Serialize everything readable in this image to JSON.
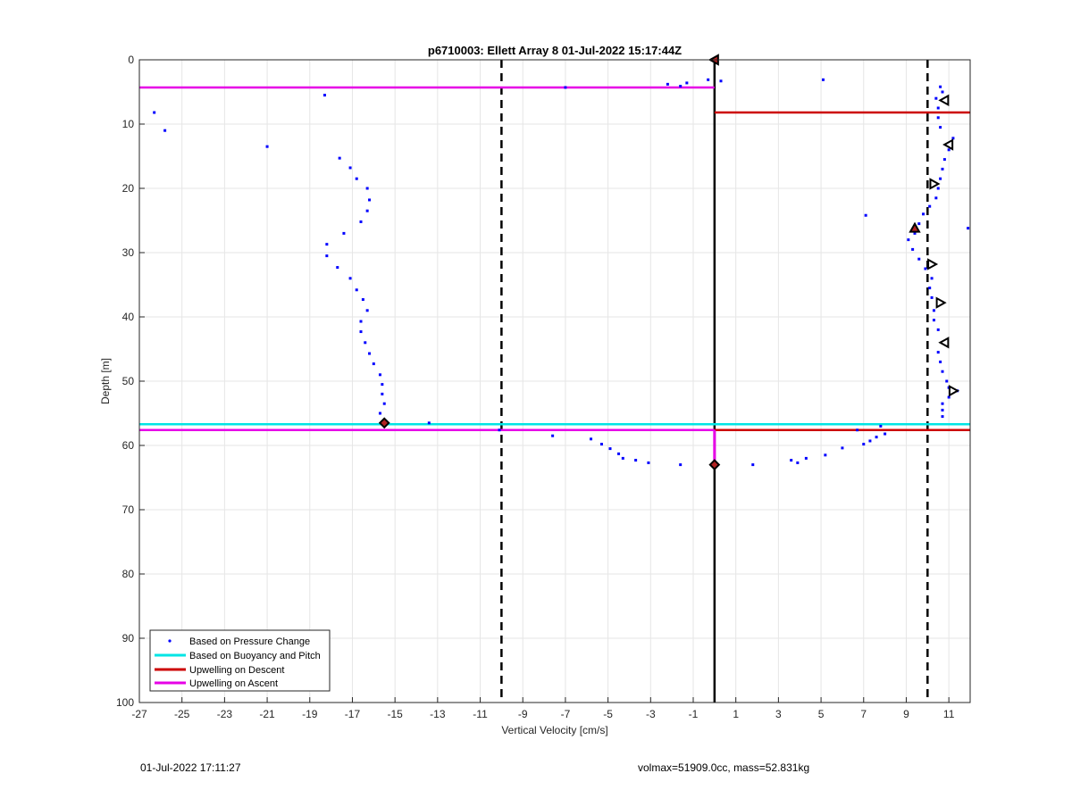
{
  "chart_data": {
    "type": "scatter",
    "title": "p6710003: Ellett Array 8 01-Jul-2022 15:17:44Z",
    "xlabel": "Vertical Velocity [cm/s]",
    "ylabel": "Depth [m]",
    "xlim": [
      -27,
      12
    ],
    "ylim": [
      0,
      100
    ],
    "y_reversed": true,
    "grid": true,
    "xticks": [
      -27,
      -25,
      -23,
      -21,
      -19,
      -17,
      -15,
      -13,
      -11,
      -9,
      -7,
      -5,
      -3,
      -1,
      1,
      3,
      5,
      7,
      9,
      11
    ],
    "yticks": [
      0,
      10,
      20,
      30,
      40,
      50,
      60,
      70,
      80,
      90,
      100
    ],
    "legend_position": "bottom-left",
    "legend": [
      {
        "label": "Based on Pressure Change",
        "color": "#0000ff",
        "style": "dot"
      },
      {
        "label": "Based on Buoyancy and Pitch",
        "color": "#00e5e5",
        "style": "line"
      },
      {
        "label": "Upwelling on Descent",
        "color": "#cc0000",
        "style": "line"
      },
      {
        "label": "Upwelling on Ascent",
        "color": "#e600e6",
        "style": "line"
      }
    ],
    "reference_lines": {
      "solid_x": 0.0,
      "dashed_x": [
        -10,
        10
      ]
    },
    "series": [
      {
        "name": "Based on Pressure Change",
        "color": "#0000ff",
        "points": [
          [
            -26.3,
            8.2
          ],
          [
            -25.8,
            11.0
          ],
          [
            -21.0,
            13.5
          ],
          [
            -18.3,
            5.5
          ],
          [
            -17.6,
            15.3
          ],
          [
            -17.1,
            16.8
          ],
          [
            -16.8,
            18.5
          ],
          [
            -16.3,
            20.0
          ],
          [
            -16.2,
            21.8
          ],
          [
            -16.3,
            23.5
          ],
          [
            -16.6,
            25.2
          ],
          [
            -17.4,
            27.0
          ],
          [
            -18.2,
            28.7
          ],
          [
            -18.2,
            30.5
          ],
          [
            -17.7,
            32.3
          ],
          [
            -17.1,
            34.0
          ],
          [
            -16.8,
            35.8
          ],
          [
            -16.5,
            37.3
          ],
          [
            -16.3,
            39.0
          ],
          [
            -16.6,
            40.7
          ],
          [
            -16.6,
            42.3
          ],
          [
            -16.4,
            44.0
          ],
          [
            -16.2,
            45.7
          ],
          [
            -16.0,
            47.3
          ],
          [
            -15.7,
            49.0
          ],
          [
            -15.6,
            50.5
          ],
          [
            -15.6,
            52.0
          ],
          [
            -15.5,
            53.5
          ],
          [
            -15.7,
            55.0
          ],
          [
            -13.4,
            56.5
          ],
          [
            -10.1,
            57.6
          ],
          [
            -7.6,
            58.5
          ],
          [
            -7.0,
            4.3
          ],
          [
            -5.8,
            59.0
          ],
          [
            -5.3,
            59.8
          ],
          [
            -4.9,
            60.5
          ],
          [
            -4.5,
            61.3
          ],
          [
            -4.3,
            62.0
          ],
          [
            -3.7,
            62.3
          ],
          [
            -3.1,
            62.7
          ],
          [
            -1.6,
            63.0
          ],
          [
            -2.2,
            3.8
          ],
          [
            -1.6,
            4.1
          ],
          [
            -1.3,
            3.6
          ],
          [
            -0.3,
            3.1
          ],
          [
            0.3,
            3.3
          ],
          [
            1.8,
            63.0
          ],
          [
            3.6,
            62.3
          ],
          [
            3.9,
            62.7
          ],
          [
            4.3,
            62.0
          ],
          [
            5.1,
            3.1
          ],
          [
            5.2,
            61.5
          ],
          [
            6.0,
            60.4
          ],
          [
            6.7,
            57.6
          ],
          [
            7.0,
            59.8
          ],
          [
            7.1,
            24.2
          ],
          [
            7.3,
            59.3
          ],
          [
            7.6,
            58.7
          ],
          [
            7.8,
            57.0
          ],
          [
            8.0,
            58.2
          ],
          [
            9.1,
            28.0
          ],
          [
            9.3,
            29.5
          ],
          [
            9.4,
            27.0
          ],
          [
            9.6,
            25.5
          ],
          [
            9.6,
            31.0
          ],
          [
            9.8,
            24.0
          ],
          [
            9.9,
            32.5
          ],
          [
            10.1,
            22.8
          ],
          [
            10.2,
            34.0
          ],
          [
            10.1,
            35.5
          ],
          [
            10.2,
            37.0
          ],
          [
            10.4,
            21.5
          ],
          [
            10.3,
            39.0
          ],
          [
            10.3,
            40.5
          ],
          [
            10.5,
            20.0
          ],
          [
            10.5,
            42.0
          ],
          [
            10.6,
            18.5
          ],
          [
            10.7,
            17.0
          ],
          [
            10.5,
            45.5
          ],
          [
            10.6,
            47.0
          ],
          [
            10.7,
            48.5
          ],
          [
            10.8,
            15.5
          ],
          [
            10.9,
            50.0
          ],
          [
            11.0,
            14.0
          ],
          [
            11.1,
            13.0
          ],
          [
            11.0,
            51.0
          ],
          [
            11.2,
            12.2
          ],
          [
            11.4,
            51.5
          ],
          [
            11.0,
            52.5
          ],
          [
            10.7,
            53.5
          ],
          [
            10.7,
            54.5
          ],
          [
            10.7,
            55.5
          ],
          [
            10.6,
            10.5
          ],
          [
            10.5,
            9.0
          ],
          [
            10.5,
            7.5
          ],
          [
            10.4,
            6.0
          ],
          [
            10.6,
            4.2
          ],
          [
            10.7,
            5.0
          ],
          [
            11.9,
            26.2
          ]
        ]
      },
      {
        "name": "Based on Buoyancy and Pitch",
        "color": "#00e5e5",
        "lines": [
          {
            "depth": 56.7,
            "x_from": -27,
            "x_to": 12
          }
        ]
      },
      {
        "name": "Upwelling on Descent",
        "color": "#cc0000",
        "lines": [
          {
            "depth": 8.2,
            "x_from": 0.0,
            "x_to": 12
          },
          {
            "depth": 57.6,
            "x_from": 0.0,
            "x_to": 12
          }
        ]
      },
      {
        "name": "Upwelling on Ascent",
        "color": "#e600e6",
        "lines": [
          {
            "depth": 4.3,
            "x_from": -27,
            "x_to": 0.0
          },
          {
            "depth": 57.6,
            "x_from": -27,
            "x_to": 0.0
          }
        ]
      }
    ],
    "markers": [
      {
        "x": 0.0,
        "y": 0.0,
        "symbol": "triangle-left",
        "fill": "#b22222"
      },
      {
        "x": 0.0,
        "y": 63.0,
        "symbol": "diamond",
        "fill": "#b22222"
      },
      {
        "x": -15.5,
        "y": 56.5,
        "symbol": "diamond",
        "fill": "#b22222"
      },
      {
        "x": 9.4,
        "y": 26.2,
        "symbol": "triangle-up",
        "fill": "#b22222"
      },
      {
        "x": 10.8,
        "y": 6.3,
        "symbol": "triangle-left",
        "fill": "#ffffff"
      },
      {
        "x": 11.0,
        "y": 13.2,
        "symbol": "triangle-left",
        "fill": "#ffffff"
      },
      {
        "x": 10.3,
        "y": 19.3,
        "symbol": "triangle-right",
        "fill": "#ffffff"
      },
      {
        "x": 10.2,
        "y": 31.8,
        "symbol": "triangle-right",
        "fill": "#ffffff"
      },
      {
        "x": 10.6,
        "y": 37.8,
        "symbol": "triangle-right",
        "fill": "#ffffff"
      },
      {
        "x": 10.8,
        "y": 44.0,
        "symbol": "triangle-left",
        "fill": "#ffffff"
      },
      {
        "x": 11.2,
        "y": 51.5,
        "symbol": "triangle-right",
        "fill": "#ffffff"
      }
    ],
    "ascent_pink_segment": {
      "x": 0.0,
      "from_depth": 57.6,
      "to_depth": 63.0
    }
  },
  "footer": {
    "left_text": "01-Jul-2022 17:11:27",
    "right_text": "volmax=51909.0cc, mass=52.831kg"
  }
}
